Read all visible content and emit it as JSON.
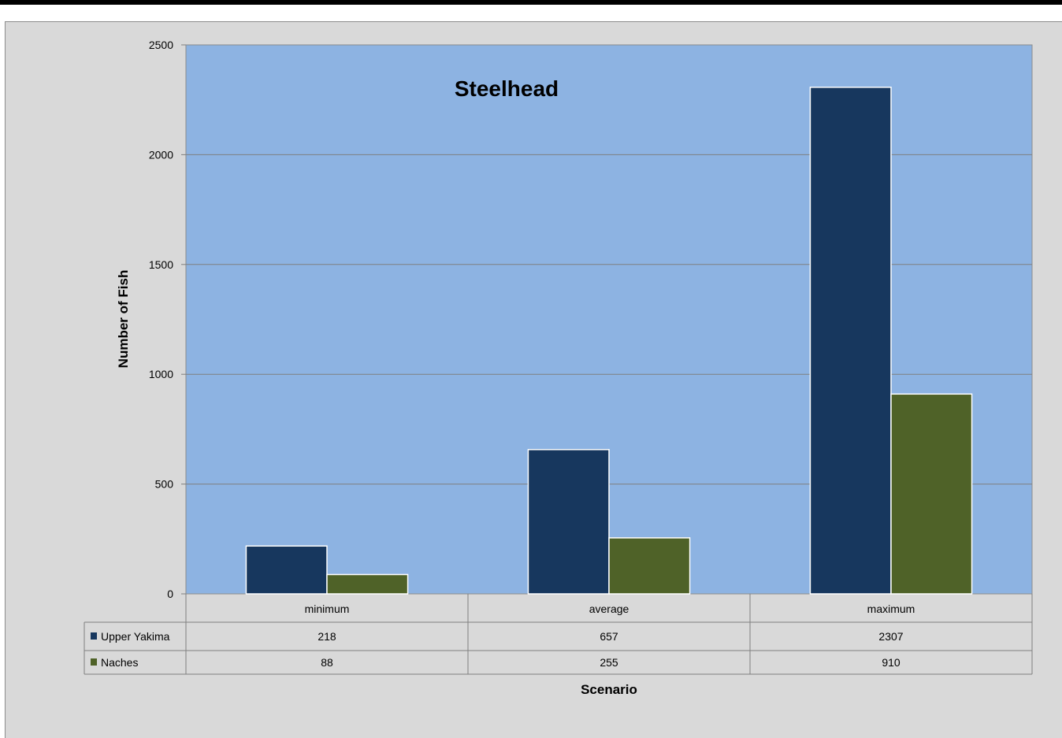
{
  "chart_data": {
    "type": "bar",
    "title": "Steelhead",
    "xlabel": "Scenario",
    "ylabel": "Number of Fish",
    "categories": [
      "minimum",
      "average",
      "maximum"
    ],
    "series": [
      {
        "name": "Upper Yakima",
        "values": [
          218,
          657,
          2307
        ],
        "color": "#17375e"
      },
      {
        "name": "Naches",
        "values": [
          88,
          255,
          910
        ],
        "color": "#4f6228"
      }
    ],
    "ylim": [
      0,
      2500
    ],
    "yticks": [
      0,
      500,
      1000,
      1500,
      2000,
      2500
    ],
    "grid": true,
    "legend": "data-table",
    "plot_background": "#8db3e2",
    "chart_background": "#d9d9d9"
  }
}
